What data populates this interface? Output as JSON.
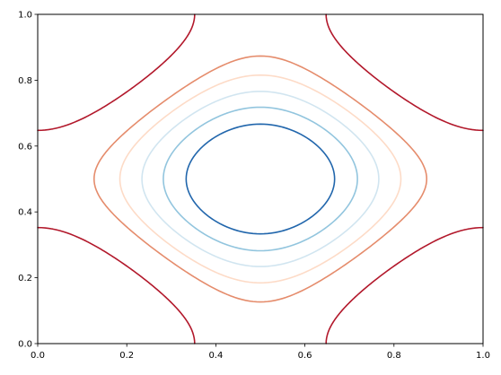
{
  "chart_data": {
    "type": "contour",
    "title": "",
    "xlabel": "",
    "ylabel": "",
    "xlim": [
      0,
      1
    ],
    "ylim": [
      0,
      1
    ],
    "grid": false,
    "legend": "none",
    "x_ticks": [
      "0.0",
      "0.2",
      "0.4",
      "0.6",
      "0.8",
      "1.0"
    ],
    "y_ticks": [
      "0.0",
      "0.2",
      "0.4",
      "0.6",
      "0.8",
      "1.0"
    ],
    "x_tick_values": [
      0,
      0.2,
      0.4,
      0.6,
      0.8,
      1.0
    ],
    "y_tick_values": [
      0,
      0.2,
      0.4,
      0.6,
      0.8,
      1.0
    ],
    "function": "cos(2*pi*x) + cos(2*pi*y)",
    "grid_resolution": 120,
    "levels": [
      {
        "value": -1.5,
        "color": "#2166ac"
      },
      {
        "value": -1.2,
        "color": "#92c5de"
      },
      {
        "value": -0.9,
        "color": "#d1e5f0"
      },
      {
        "value": -0.6,
        "color": "#fddbc7"
      },
      {
        "value": -0.3,
        "color": "#e58c6c"
      },
      {
        "value": 0.4,
        "color": "#b2182b"
      }
    ]
  }
}
